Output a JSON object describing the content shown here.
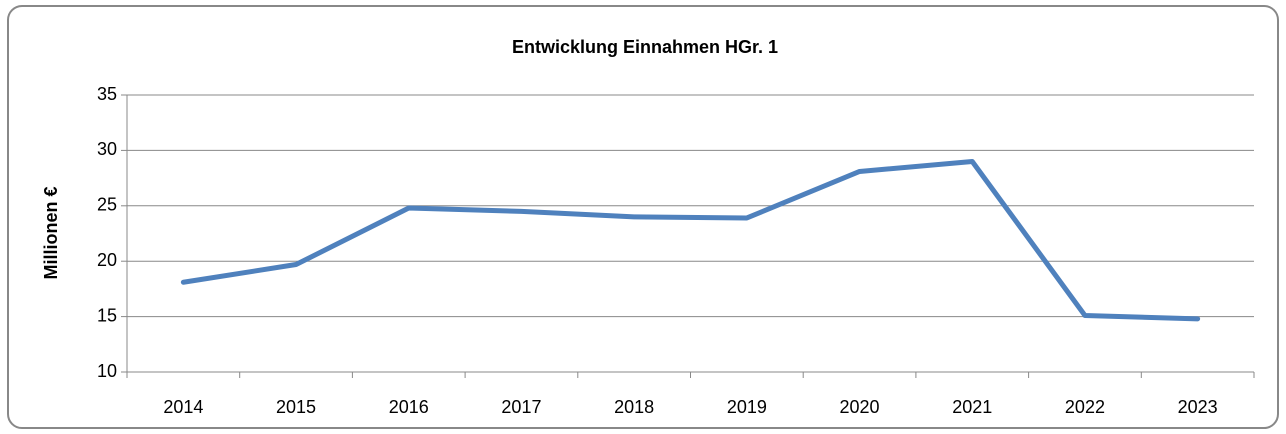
{
  "chart_data": {
    "type": "line",
    "title": "Entwicklung Einnahmen HGr. 1",
    "ylabel": "Millionen €",
    "categories": [
      "2014",
      "2015",
      "2016",
      "2017",
      "2018",
      "2019",
      "2020",
      "2021",
      "2022",
      "2023"
    ],
    "values": [
      18.1,
      19.7,
      24.8,
      24.5,
      24.0,
      23.9,
      28.1,
      29.0,
      15.1,
      14.8
    ],
    "color": "#4f81bd",
    "ylim": [
      10,
      35
    ],
    "yticks": [
      10,
      15,
      20,
      25,
      30,
      35
    ],
    "grid": true
  }
}
